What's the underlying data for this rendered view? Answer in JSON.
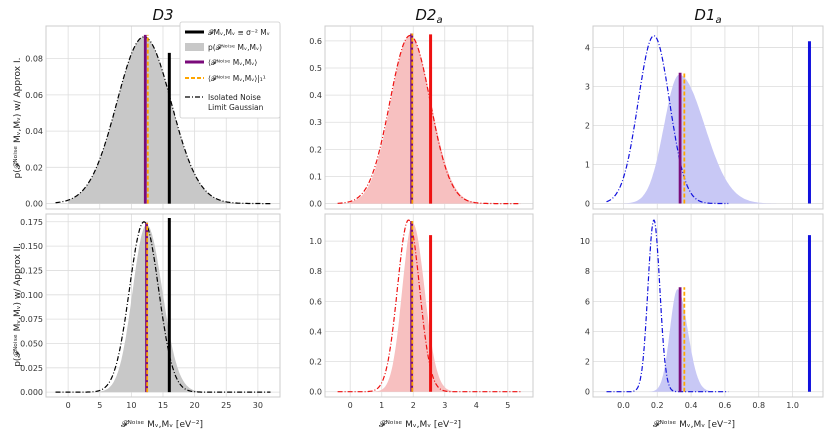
{
  "figure": {
    "ylabel_top": "p(𝓕ᴺᵒⁱˢᵉ Mᵥ,Mᵥ) w/ Approx I.",
    "ylabel_bottom": "p(𝓕ᴺᵒⁱˢᵉ Mᵥ,Mᵥ) w/ Approx II.",
    "xlabel": "𝓕ᴺᵒⁱˢᵉ Mᵥ,Mᵥ [eV⁻²]"
  },
  "legend": {
    "items": [
      {
        "label": "𝓕Mᵥ,Mᵥ ≡ σ⁻² Mᵥ",
        "style": "solid-black"
      },
      {
        "label": "p(𝓕ᴺᵒⁱˢᵉ Mᵥ,Mᵥ)",
        "style": "gray-patch"
      },
      {
        "label": "⟨𝓕ᴺᵒⁱˢᵉ Mᵥ,Mᵥ⟩",
        "style": "solid-purple"
      },
      {
        "label": "⟨𝓕ᴺᵒⁱˢᵉ Mᵥ,Mᵥ⟩|₁¹",
        "style": "dashed-orange"
      },
      {
        "label": "Isolated Noise",
        "style": "dashdot-black"
      },
      {
        "label": "Limit Gaussian",
        "style": "none"
      }
    ]
  },
  "colors": {
    "D3": "#000000",
    "D2a": "#ee1111",
    "D1a": "#1111dd",
    "mean": "#7a0a7a",
    "first_order": "#ffa500",
    "grid": "#dddddd"
  },
  "chart_data": [
    {
      "type": "area",
      "title": "D3",
      "title_base": "D3",
      "title_sub": "",
      "row": "Approx I.",
      "col": 0,
      "row_index": 0,
      "color": "D3",
      "xlim": [
        -3.5,
        33.5
      ],
      "ylim": [
        -0.003,
        0.098
      ],
      "xticks": [
        0,
        5,
        10,
        15,
        20,
        25,
        30
      ],
      "yticks": [
        0.0,
        0.02,
        0.04,
        0.06,
        0.08
      ],
      "ytick_labels": [
        "0.00",
        "0.02",
        "0.04",
        "0.06",
        "0.08"
      ],
      "fisher": 16.0,
      "mean": 12.2,
      "first_order": 12.6,
      "hist": {
        "mu": 12.0,
        "sigma_left": 4.3,
        "sigma_right": 4.3,
        "peak": 0.092,
        "x_range": [
          0,
          30
        ],
        "fill": "#c8c8c8",
        "alpha": 1.0
      },
      "gaussian": {
        "mu": 12.0,
        "sigma": 4.3,
        "peak": 0.092,
        "x_range": [
          -2,
          32
        ]
      }
    },
    {
      "type": "area",
      "title": "D2a",
      "title_base": "D2",
      "title_sub": "a",
      "row": "Approx I.",
      "col": 1,
      "row_index": 0,
      "color": "D2a",
      "xlim": [
        -0.8,
        5.8
      ],
      "ylim": [
        -0.02,
        0.655
      ],
      "xticks": [
        0,
        1,
        2,
        3,
        4,
        5
      ],
      "yticks": [
        0.0,
        0.1,
        0.2,
        0.3,
        0.4,
        0.5,
        0.6
      ],
      "ytick_labels": [
        "0.0",
        "0.1",
        "0.2",
        "0.3",
        "0.4",
        "0.5",
        "0.6"
      ],
      "fisher": 2.55,
      "mean": 1.95,
      "first_order": 1.97,
      "hist": {
        "mu": 1.9,
        "sigma_left": 0.62,
        "sigma_right": 0.66,
        "peak": 0.62,
        "x_range": [
          0,
          5.1
        ],
        "fill": "#f7c0c0",
        "alpha": 1.0
      },
      "gaussian": {
        "mu": 1.9,
        "sigma": 0.64,
        "peak": 0.62,
        "x_range": [
          -0.4,
          5.4
        ]
      }
    },
    {
      "type": "area",
      "title": "D1a",
      "title_base": "D1",
      "title_sub": "a",
      "row": "Approx I.",
      "col": 2,
      "row_index": 0,
      "color": "D1a",
      "xlim": [
        -0.18,
        1.18
      ],
      "ylim": [
        -0.14,
        4.55
      ],
      "xticks": [
        0.0,
        0.2,
        0.4,
        0.6,
        0.8,
        1.0
      ],
      "yticks": [
        0,
        1,
        2,
        3,
        4
      ],
      "ytick_labels": [
        "0",
        "1",
        "2",
        "3",
        "4"
      ],
      "fisher": 1.1,
      "mean": 0.335,
      "first_order": 0.36,
      "hist": {
        "mu": 0.33,
        "sigma_left": 0.09,
        "sigma_right": 0.15,
        "peak": 3.3,
        "x_range": [
          0.0,
          1.0
        ],
        "fill": "#c8c8f5",
        "alpha": 1.0
      },
      "gaussian": {
        "mu": 0.18,
        "sigma": 0.093,
        "peak": 4.3,
        "x_range": [
          -0.1,
          0.62
        ]
      }
    },
    {
      "type": "area",
      "title": "",
      "title_base": "",
      "title_sub": "",
      "row": "Approx II.",
      "col": 0,
      "row_index": 1,
      "color": "D3",
      "xlim": [
        -3.5,
        33.5
      ],
      "ylim": [
        -0.005,
        0.183
      ],
      "xticks": [
        0,
        5,
        10,
        15,
        20,
        25,
        30
      ],
      "xtick_labels": [
        "0",
        "5",
        "10",
        "15",
        "20",
        "25",
        "30"
      ],
      "yticks": [
        0.0,
        0.025,
        0.05,
        0.075,
        0.1,
        0.125,
        0.15,
        0.175
      ],
      "ytick_labels": [
        "0.000",
        "0.025",
        "0.050",
        "0.075",
        "0.100",
        "0.125",
        "0.150",
        "0.175"
      ],
      "fisher": 16.0,
      "mean": 12.4,
      "first_order": 12.5,
      "hist": {
        "mu": 12.4,
        "sigma_left": 2.2,
        "sigma_right": 2.5,
        "peak": 0.172,
        "x_range": [
          5,
          22
        ],
        "fill": "#c8c8c8",
        "alpha": 1.0
      },
      "gaussian": {
        "mu": 12.0,
        "sigma": 2.3,
        "peak": 0.175,
        "x_range": [
          -2,
          32
        ]
      }
    },
    {
      "type": "area",
      "title": "",
      "title_base": "",
      "title_sub": "",
      "row": "Approx II.",
      "col": 1,
      "row_index": 1,
      "color": "D2a",
      "xlim": [
        -0.8,
        5.8
      ],
      "ylim": [
        -0.035,
        1.18
      ],
      "xticks": [
        0,
        1,
        2,
        3,
        4,
        5
      ],
      "xtick_labels": [
        "0",
        "1",
        "2",
        "3",
        "4",
        "5"
      ],
      "yticks": [
        0.0,
        0.2,
        0.4,
        0.6,
        0.8,
        1.0
      ],
      "ytick_labels": [
        "0.0",
        "0.2",
        "0.4",
        "0.6",
        "0.8",
        "1.0"
      ],
      "fisher": 2.55,
      "mean": 1.95,
      "first_order": 1.97,
      "hist": {
        "mu": 1.98,
        "sigma_left": 0.33,
        "sigma_right": 0.38,
        "peak": 1.12,
        "x_range": [
          0.6,
          3.6
        ],
        "fill": "#f7c0c0",
        "alpha": 1.0
      },
      "gaussian": {
        "mu": 1.85,
        "sigma": 0.35,
        "peak": 1.14,
        "x_range": [
          -0.4,
          5.4
        ]
      }
    },
    {
      "type": "area",
      "title": "",
      "title_base": "",
      "title_sub": "",
      "row": "Approx II.",
      "col": 2,
      "row_index": 1,
      "color": "D1a",
      "xlim": [
        -0.18,
        1.18
      ],
      "ylim": [
        -0.35,
        11.8
      ],
      "xticks": [
        0.0,
        0.2,
        0.4,
        0.6,
        0.8,
        1.0
      ],
      "xtick_labels": [
        "0.0",
        "0.2",
        "0.4",
        "0.6",
        "0.8",
        "1.0"
      ],
      "yticks": [
        0,
        2,
        4,
        6,
        8,
        10
      ],
      "ytick_labels": [
        "0",
        "2",
        "4",
        "6",
        "8",
        "10"
      ],
      "fisher": 1.1,
      "mean": 0.335,
      "first_order": 0.36,
      "hist": {
        "mu": 0.32,
        "sigma_left": 0.045,
        "sigma_right": 0.06,
        "peak": 6.8,
        "x_range": [
          0.15,
          0.76
        ],
        "fill": "#c8c8f5",
        "alpha": 1.0
      },
      "gaussian": {
        "mu": 0.18,
        "sigma": 0.035,
        "peak": 11.4,
        "x_range": [
          -0.1,
          0.62
        ]
      }
    }
  ]
}
